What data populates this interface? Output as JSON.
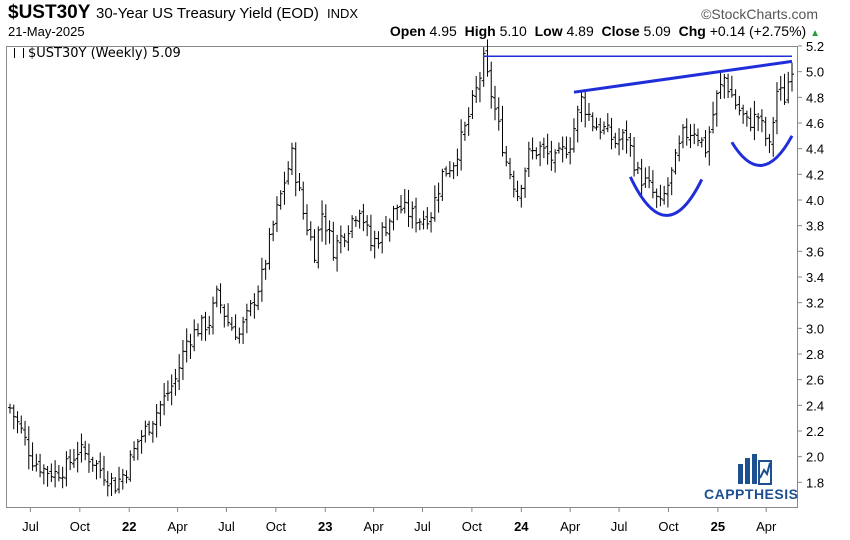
{
  "header": {
    "symbol": "$UST30Y",
    "description": "30-Year US Treasury Yield (EOD)",
    "exchange": "INDX",
    "brand": "©StockCharts.com",
    "date": "21-May-2025"
  },
  "quote": {
    "open_label": "Open",
    "open": "4.95",
    "high_label": "High",
    "high": "5.10",
    "low_label": "Low",
    "low": "4.89",
    "close_label": "Close",
    "close": "5.09",
    "chg_label": "Chg",
    "chg": "+0.14 (+2.75%)",
    "chg_arrow": "▲"
  },
  "legend": {
    "label": "$UST30Y (Weekly) 5.09"
  },
  "watermark": {
    "text": "CAPPTHESIS"
  },
  "colors": {
    "bars": "#000000",
    "annotation": "#1f2ed8",
    "accent": "#1d4f91",
    "up": "#2a9a3a"
  },
  "chart_data": {
    "type": "ohlc",
    "interval": "weekly",
    "y_axis": {
      "side": "right",
      "min": 1.6,
      "max": 5.2,
      "ticks": [
        1.8,
        2.0,
        2.2,
        2.4,
        2.6,
        2.8,
        3.0,
        3.2,
        3.4,
        3.6,
        3.8,
        4.0,
        4.2,
        4.4,
        4.6,
        4.8,
        5.0,
        5.2
      ]
    },
    "x_axis": {
      "range": [
        "2021-05-24",
        "2025-05-19"
      ],
      "ticks": [
        {
          "date": "2021-07-01",
          "label": "Jul",
          "bold": false
        },
        {
          "date": "2021-10-01",
          "label": "Oct",
          "bold": false
        },
        {
          "date": "2022-01-01",
          "label": "22",
          "bold": true
        },
        {
          "date": "2022-04-01",
          "label": "Apr",
          "bold": false
        },
        {
          "date": "2022-07-01",
          "label": "Jul",
          "bold": false
        },
        {
          "date": "2022-10-01",
          "label": "Oct",
          "bold": false
        },
        {
          "date": "2023-01-01",
          "label": "23",
          "bold": true
        },
        {
          "date": "2023-04-01",
          "label": "Apr",
          "bold": false
        },
        {
          "date": "2023-07-01",
          "label": "Jul",
          "bold": false
        },
        {
          "date": "2023-10-01",
          "label": "Oct",
          "bold": false
        },
        {
          "date": "2024-01-01",
          "label": "24",
          "bold": true
        },
        {
          "date": "2024-04-01",
          "label": "Apr",
          "bold": false
        },
        {
          "date": "2024-07-01",
          "label": "Jul",
          "bold": false
        },
        {
          "date": "2024-10-01",
          "label": "Oct",
          "bold": false
        },
        {
          "date": "2025-01-01",
          "label": "25",
          "bold": true
        },
        {
          "date": "2025-04-01",
          "label": "Apr",
          "bold": false
        }
      ]
    },
    "close_path": [
      [
        "2021-05-24",
        2.38
      ],
      [
        "2021-06-14",
        2.2
      ],
      [
        "2021-07-05",
        1.98
      ],
      [
        "2021-07-26",
        1.9
      ],
      [
        "2021-08-16",
        1.87
      ],
      [
        "2021-09-06",
        1.92
      ],
      [
        "2021-09-27",
        2.05
      ],
      [
        "2021-10-18",
        2.0
      ],
      [
        "2021-11-08",
        1.9
      ],
      [
        "2021-12-06",
        1.78
      ],
      [
        "2021-12-27",
        1.9
      ],
      [
        "2022-01-17",
        2.12
      ],
      [
        "2022-02-07",
        2.25
      ],
      [
        "2022-03-07",
        2.45
      ],
      [
        "2022-03-28",
        2.6
      ],
      [
        "2022-04-18",
        2.9
      ],
      [
        "2022-05-09",
        3.0
      ],
      [
        "2022-05-30",
        3.05
      ],
      [
        "2022-06-13",
        3.25
      ],
      [
        "2022-07-04",
        3.05
      ],
      [
        "2022-07-25",
        2.95
      ],
      [
        "2022-08-15",
        3.15
      ],
      [
        "2022-09-05",
        3.4
      ],
      [
        "2022-09-26",
        3.8
      ],
      [
        "2022-10-17",
        4.15
      ],
      [
        "2022-10-31",
        4.35
      ],
      [
        "2022-11-21",
        3.9
      ],
      [
        "2022-12-12",
        3.6
      ],
      [
        "2022-12-26",
        3.9
      ],
      [
        "2023-01-16",
        3.62
      ],
      [
        "2023-02-06",
        3.75
      ],
      [
        "2023-03-06",
        3.95
      ],
      [
        "2023-03-27",
        3.65
      ],
      [
        "2023-04-17",
        3.75
      ],
      [
        "2023-05-15",
        3.95
      ],
      [
        "2023-06-05",
        3.9
      ],
      [
        "2023-06-26",
        3.85
      ],
      [
        "2023-07-17",
        3.9
      ],
      [
        "2023-08-07",
        4.2
      ],
      [
        "2023-08-28",
        4.3
      ],
      [
        "2023-09-18",
        4.55
      ],
      [
        "2023-10-09",
        4.85
      ],
      [
        "2023-10-23",
        5.08
      ],
      [
        "2023-11-13",
        4.7
      ],
      [
        "2023-12-04",
        4.3
      ],
      [
        "2023-12-25",
        4.05
      ],
      [
        "2024-01-15",
        4.35
      ],
      [
        "2024-02-05",
        4.4
      ],
      [
        "2024-03-04",
        4.3
      ],
      [
        "2024-04-01",
        4.45
      ],
      [
        "2024-04-22",
        4.78
      ],
      [
        "2024-05-13",
        4.6
      ],
      [
        "2024-06-03",
        4.55
      ],
      [
        "2024-06-24",
        4.45
      ],
      [
        "2024-07-15",
        4.5
      ],
      [
        "2024-08-05",
        4.2
      ],
      [
        "2024-08-26",
        4.1
      ],
      [
        "2024-09-16",
        3.95
      ],
      [
        "2024-10-07",
        4.2
      ],
      [
        "2024-10-28",
        4.5
      ],
      [
        "2024-11-18",
        4.55
      ],
      [
        "2024-12-09",
        4.4
      ],
      [
        "2024-12-30",
        4.8
      ],
      [
        "2025-01-13",
        4.95
      ],
      [
        "2025-02-03",
        4.75
      ],
      [
        "2025-02-24",
        4.6
      ],
      [
        "2025-03-17",
        4.65
      ],
      [
        "2025-04-07",
        4.4
      ],
      [
        "2025-04-21",
        4.85
      ],
      [
        "2025-05-05",
        4.8
      ],
      [
        "2025-05-19",
        5.05
      ]
    ],
    "annotations": [
      {
        "kind": "horizontal-line",
        "y": 5.12,
        "from": "2023-10-23",
        "to": "2025-05-19",
        "color": "#1f2ed8"
      },
      {
        "kind": "trendline",
        "from": [
          "2024-04-08",
          4.84
        ],
        "to": [
          "2025-05-19",
          5.08
        ],
        "color": "#1f2ed8"
      },
      {
        "kind": "arc",
        "from": [
          "2024-07-22",
          4.18
        ],
        "to": [
          "2024-12-02",
          4.16
        ],
        "bottom": 3.88,
        "color": "#1f2ed8"
      },
      {
        "kind": "arc",
        "from": [
          "2025-01-27",
          4.45
        ],
        "to": [
          "2025-05-19",
          4.5
        ],
        "bottom": 4.27,
        "color": "#1f2ed8"
      }
    ]
  }
}
